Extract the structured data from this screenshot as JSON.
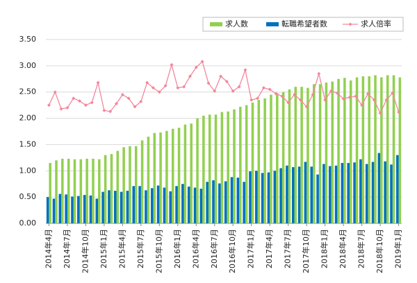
{
  "chart_data": {
    "type": "bar-line",
    "categories": [
      "2014年4月",
      null,
      null,
      "2014年7月",
      null,
      null,
      "2014年10月",
      null,
      null,
      "2015年1月",
      null,
      null,
      "2015年4月",
      null,
      null,
      "2015年7月",
      null,
      null,
      "2015年10月",
      null,
      null,
      "2016年1月",
      null,
      null,
      "2016年4月",
      null,
      null,
      "2016年7月",
      null,
      null,
      "2016年10月",
      null,
      null,
      "2017年1月",
      null,
      null,
      "2017年4月",
      null,
      null,
      "2017年7月",
      null,
      null,
      "2017年10月",
      null,
      null,
      "2018年1月",
      null,
      null,
      "2018年4月",
      null,
      null,
      "2018年7月",
      null,
      null,
      "2018年10月",
      null,
      null,
      "2019年1月"
    ],
    "series": [
      {
        "name": "求人数",
        "color": "#92d050",
        "kind": "bar",
        "values": [
          1.15,
          1.2,
          1.23,
          1.23,
          1.22,
          1.22,
          1.23,
          1.23,
          1.22,
          1.3,
          1.32,
          1.38,
          1.45,
          1.47,
          1.47,
          1.58,
          1.65,
          1.72,
          1.73,
          1.76,
          1.8,
          1.82,
          1.88,
          1.9,
          2.0,
          2.05,
          2.07,
          2.07,
          2.12,
          2.13,
          2.17,
          2.22,
          2.25,
          2.3,
          2.35,
          2.38,
          2.45,
          2.48,
          2.5,
          2.55,
          2.6,
          2.6,
          2.58,
          2.65,
          2.65,
          2.68,
          2.7,
          2.75,
          2.77,
          2.72,
          2.78,
          2.8,
          2.8,
          2.82,
          2.78,
          2.82,
          2.82,
          2.78
        ]
      },
      {
        "name": "転職希望者数",
        "color": "#0070c0",
        "kind": "bar",
        "values": [
          0.5,
          0.47,
          0.56,
          0.55,
          0.51,
          0.52,
          0.54,
          0.53,
          0.47,
          0.6,
          0.63,
          0.62,
          0.6,
          0.62,
          0.71,
          0.71,
          0.63,
          0.67,
          0.72,
          0.68,
          0.61,
          0.71,
          0.75,
          0.7,
          0.68,
          0.66,
          0.79,
          0.82,
          0.76,
          0.8,
          0.88,
          0.87,
          0.79,
          0.99,
          1.0,
          0.96,
          0.97,
          1.0,
          1.05,
          1.1,
          1.07,
          1.08,
          1.17,
          1.08,
          0.93,
          1.13,
          1.09,
          1.1,
          1.15,
          1.15,
          1.16,
          1.22,
          1.13,
          1.17,
          1.34,
          1.18,
          1.12,
          1.3
        ]
      },
      {
        "name": "求人倍率",
        "color": "#f4869c",
        "kind": "line",
        "values": [
          2.25,
          2.5,
          2.18,
          2.2,
          2.38,
          2.33,
          2.25,
          2.3,
          2.68,
          2.15,
          2.13,
          2.28,
          2.45,
          2.38,
          2.22,
          2.32,
          2.68,
          2.58,
          2.5,
          2.62,
          3.02,
          2.58,
          2.6,
          2.8,
          2.97,
          3.08,
          2.67,
          2.52,
          2.8,
          2.7,
          2.52,
          2.6,
          2.92,
          2.35,
          2.38,
          2.58,
          2.55,
          2.47,
          2.42,
          2.3,
          2.45,
          2.35,
          2.22,
          2.45,
          2.85,
          2.35,
          2.52,
          2.48,
          2.37,
          2.4,
          2.42,
          2.25,
          2.47,
          2.35,
          2.1,
          2.35,
          2.48,
          2.12
        ]
      }
    ],
    "ylim": [
      0,
      3.5
    ],
    "yticks": [
      {
        "value": 0,
        "label": "0.00"
      },
      {
        "value": 0.5,
        "label": "0.50"
      },
      {
        "value": 1,
        "label": "1.00"
      },
      {
        "value": 1.5,
        "label": "1.50"
      },
      {
        "value": 2,
        "label": "2.00"
      },
      {
        "value": 2.5,
        "label": "2.50"
      },
      {
        "value": 3,
        "label": "3.00"
      },
      {
        "value": 3.5,
        "label": "3.50"
      }
    ],
    "grid": true,
    "legend": "top"
  }
}
